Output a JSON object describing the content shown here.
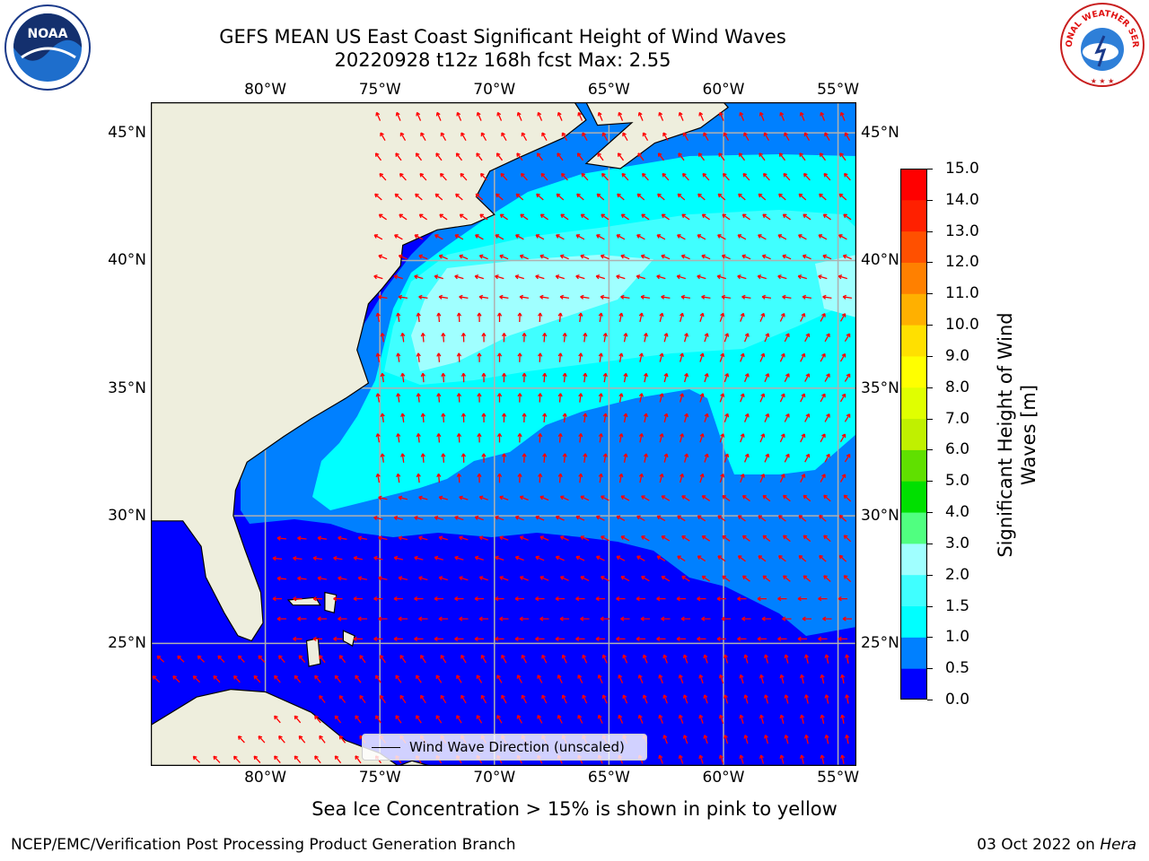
{
  "header": {
    "title_line1": "GEFS MEAN US East Coast Significant Height of Wind Waves",
    "title_line2": "20220928 t12z 168h fcst   Max: 2.55"
  },
  "axes": {
    "lon_labels": [
      "80°W",
      "75°W",
      "70°W",
      "65°W",
      "60°W",
      "55°W"
    ],
    "lat_labels": [
      "45°N",
      "40°N",
      "35°N",
      "30°N",
      "25°N"
    ],
    "lon_range": [
      -85,
      -54.2
    ],
    "lat_range": [
      20.2,
      46.2
    ]
  },
  "map": {
    "land_color": "#eeeedd",
    "coastline_color": "#000000",
    "gridline_color": "#b0b0b0",
    "arrow_color": "#ff0000"
  },
  "legend": {
    "label": "Wind Wave Direction (unscaled)"
  },
  "colorbar": {
    "title": "Significant Height of Wind Waves [m]",
    "ticks": [
      "0.0",
      "0.5",
      "1.0",
      "1.5",
      "2.0",
      "3.0",
      "4.0",
      "5.0",
      "6.0",
      "7.0",
      "8.0",
      "9.0",
      "10.0",
      "11.0",
      "12.0",
      "13.0",
      "14.0",
      "15.0"
    ],
    "colors": [
      "#0000ff",
      "#0080ff",
      "#00ffff",
      "#40ffff",
      "#a0ffff",
      "#50ff80",
      "#00e000",
      "#60e000",
      "#c0f000",
      "#e0ff00",
      "#ffff00",
      "#ffe000",
      "#ffb000",
      "#ff8000",
      "#ff5000",
      "#ff2000",
      "#ff0000"
    ]
  },
  "footer": {
    "note": "Sea Ice Concentration > 15% is shown in pink to yellow",
    "credit": "NCEP/EMC/Verification Post Processing Product Generation Branch",
    "date": "03 Oct 2022 on",
    "host": "Hera"
  },
  "logos": {
    "left_text": "NOAA",
    "right_text": "NATIONAL WEATHER SERVICE"
  }
}
